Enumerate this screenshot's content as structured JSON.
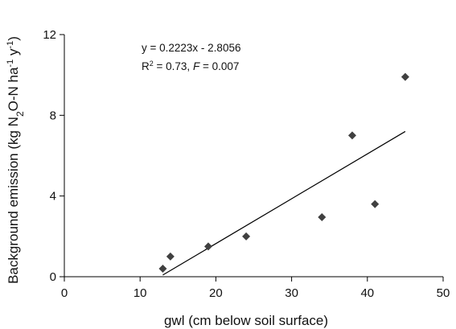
{
  "chart_data": {
    "type": "scatter",
    "x_axis": {
      "label": "gwl (cm below soil surface)",
      "range": [
        0,
        50
      ],
      "ticks": [
        0,
        10,
        20,
        30,
        40,
        50
      ]
    },
    "y_axis": {
      "label_parts": {
        "main": "Background emission (kg N",
        "sub": "2",
        "mid": "O-N ha",
        "sup1": "-1",
        "mid2": " y",
        "sup2": "-1",
        "end": ")"
      },
      "range": [
        0,
        12
      ],
      "ticks": [
        0,
        4,
        8,
        12
      ]
    },
    "grid": false,
    "legend": "none",
    "series": [
      {
        "marker": "diamond",
        "color": "#404040",
        "points": [
          {
            "x": 13,
            "y": 0.4
          },
          {
            "x": 14,
            "y": 1.0
          },
          {
            "x": 19,
            "y": 1.5
          },
          {
            "x": 24,
            "y": 2.0
          },
          {
            "x": 34,
            "y": 2.95
          },
          {
            "x": 38,
            "y": 7.0
          },
          {
            "x": 41,
            "y": 3.6
          },
          {
            "x": 45,
            "y": 9.9
          }
        ]
      }
    ],
    "trendline": {
      "slope": 0.2223,
      "intercept": -2.8056,
      "x_range": [
        13,
        45
      ],
      "color": "#000000"
    },
    "annotation": {
      "equation": "y = 0.2223x - 2.8056",
      "r2_prefix": "R",
      "r2_sup": "2",
      "r2_value": " = 0.73, ",
      "f_symbol": "F",
      "f_value": " = 0.007"
    }
  }
}
